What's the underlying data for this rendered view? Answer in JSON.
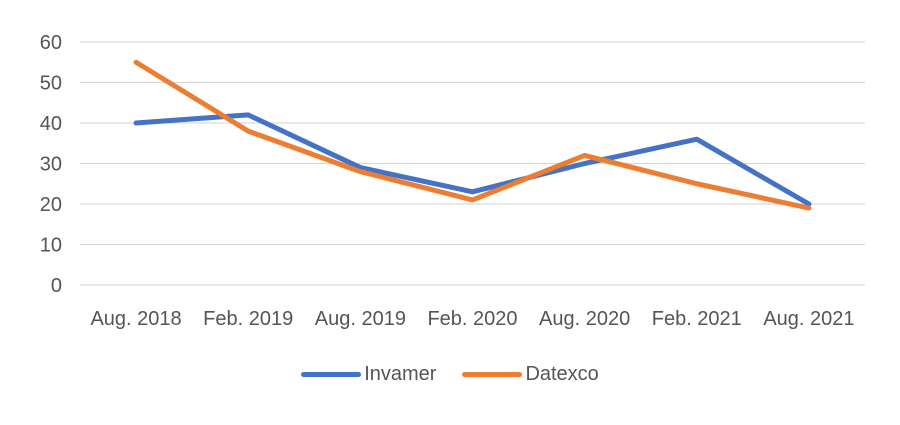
{
  "chart_data": {
    "type": "line",
    "title": "",
    "xlabel": "",
    "ylabel": "",
    "categories": [
      "Aug. 2018",
      "Feb. 2019",
      "Aug. 2019",
      "Feb. 2020",
      "Aug. 2020",
      "Feb. 2021",
      "Aug. 2021"
    ],
    "series": [
      {
        "name": "Invamer",
        "color": "#4472C4",
        "values": [
          40,
          42,
          29,
          23,
          30,
          36,
          20
        ]
      },
      {
        "name": "Datexco",
        "color": "#ED7D31",
        "values": [
          55,
          38,
          28,
          21,
          32,
          25,
          19
        ]
      }
    ],
    "ylim": [
      0,
      60
    ],
    "yticks": [
      0,
      10,
      20,
      30,
      40,
      50,
      60
    ],
    "grid": true,
    "legend_position": "bottom"
  },
  "colors": {
    "gridline": "#D9D9D9",
    "axis_text": "#555555",
    "background": "#FFFFFF"
  }
}
